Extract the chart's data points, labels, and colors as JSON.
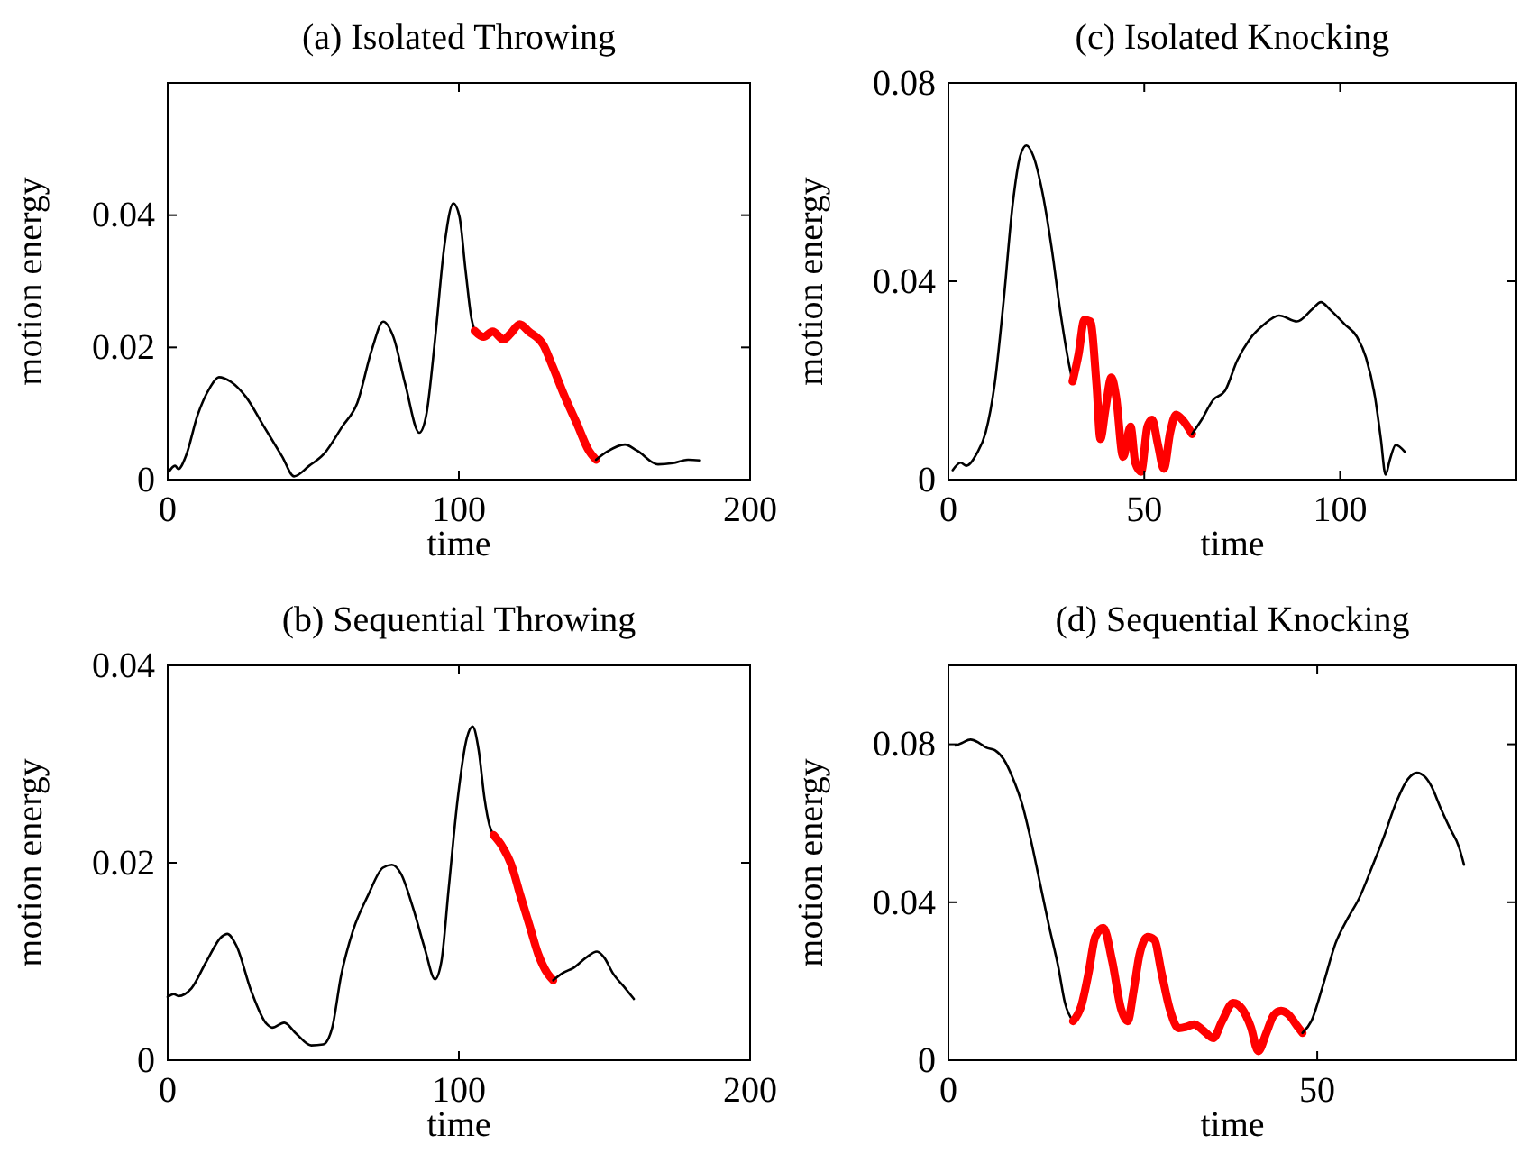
{
  "chart_data": [
    {
      "type": "line",
      "title": "(a) Isolated Throwing",
      "xlabel": "time",
      "ylabel": "motion energy",
      "xlim": [
        0,
        200
      ],
      "xticks": [
        0,
        100,
        200
      ],
      "ylim": [
        0,
        0.06
      ],
      "yticks": [
        0,
        0.02,
        0.04
      ],
      "grid": false,
      "series": [
        {
          "color": "#000000",
          "x": [
            0.4,
            2.5,
            3.7,
            6.2,
            10.3,
            14.5,
            17.6,
            21.7,
            26.9,
            33.1,
            39.3,
            43.4,
            48.6,
            53.7,
            59.9,
            65.1,
            70.2,
            74.0,
            77.5,
            81.6,
            86.4,
            88.8,
            91.9,
            95.0,
            98.1,
            100.2,
            102.3,
            104.3,
            105.4
          ],
          "values": [
            0.0012,
            0.0021,
            0.0016,
            0.0035,
            0.0098,
            0.0139,
            0.0155,
            0.0148,
            0.0125,
            0.008,
            0.0035,
            0.0005,
            0.0021,
            0.0039,
            0.008,
            0.0116,
            0.0198,
            0.0239,
            0.0216,
            0.0144,
            0.0071,
            0.0098,
            0.0216,
            0.0353,
            0.0418,
            0.0398,
            0.0316,
            0.0244,
            0.0225
          ]
        },
        {
          "color": "#ff0000",
          "x": [
            105.4,
            108.5,
            111.6,
            115.3,
            117.8,
            120.9,
            124.0,
            129.1,
            132.2,
            136.4,
            140.5,
            144.6,
            147.1
          ],
          "values": [
            0.0225,
            0.0216,
            0.0224,
            0.0212,
            0.0221,
            0.0235,
            0.0224,
            0.0203,
            0.0171,
            0.0125,
            0.0085,
            0.0044,
            0.003
          ]
        },
        {
          "color": "#000000",
          "x": [
            147.1,
            150.8,
            157.0,
            161.1,
            168.4,
            173.5,
            178.7,
            182.8
          ],
          "values": [
            0.003,
            0.0042,
            0.0053,
            0.0044,
            0.0023,
            0.0025,
            0.003,
            0.0029
          ]
        }
      ]
    },
    {
      "type": "line",
      "title": "(c) Isolated Knocking",
      "xlabel": "time",
      "ylabel": "motion energy",
      "xlim": [
        0,
        145
      ],
      "xticks": [
        0,
        50,
        100
      ],
      "ylim": [
        0,
        0.08
      ],
      "yticks": [
        0,
        0.04,
        0.08
      ],
      "grid": false,
      "series": [
        {
          "color": "#000000",
          "x": [
            1.1,
            3.1,
            4.6,
            7.2,
            9.5,
            11.8,
            14.1,
            16.4,
            18.3,
            19.9,
            21.7,
            24.0,
            26.3,
            28.6,
            30.6,
            31.7
          ],
          "values": [
            0.0019,
            0.0034,
            0.0028,
            0.0052,
            0.0095,
            0.0192,
            0.0361,
            0.0555,
            0.0652,
            0.0674,
            0.0652,
            0.0579,
            0.047,
            0.0337,
            0.024,
            0.0198
          ]
        },
        {
          "color": "#ff0000",
          "x": [
            31.7,
            33.2,
            34.7,
            36.2,
            37.8,
            38.8,
            40.1,
            41.6,
            42.8,
            44.6,
            46.5,
            47.7,
            49.2,
            50.8,
            52.0,
            53.5,
            55.0,
            56.6,
            58.1,
            59.9,
            62.2
          ],
          "values": [
            0.0198,
            0.0252,
            0.0322,
            0.0319,
            0.0192,
            0.0082,
            0.0143,
            0.0206,
            0.0167,
            0.0046,
            0.0107,
            0.0034,
            0.0016,
            0.0107,
            0.0121,
            0.007,
            0.0022,
            0.0095,
            0.0131,
            0.0119,
            0.0092
          ]
        },
        {
          "color": "#000000",
          "x": [
            62.2,
            64.5,
            67.6,
            70.6,
            73.7,
            76.8,
            80.6,
            84.4,
            89.0,
            92.8,
            95.1,
            97.4,
            101.2,
            104.3,
            106.6,
            108.9,
            110.4,
            111.6,
            112.7,
            114.2,
            116.5
          ],
          "values": [
            0.0092,
            0.0119,
            0.0161,
            0.0179,
            0.024,
            0.0282,
            0.0313,
            0.0331,
            0.0319,
            0.0343,
            0.0358,
            0.0343,
            0.0313,
            0.0288,
            0.0246,
            0.0167,
            0.0082,
            0.001,
            0.004,
            0.007,
            0.0056
          ]
        }
      ]
    },
    {
      "type": "line",
      "title": "(b) Sequential Throwing",
      "xlabel": "time",
      "ylabel": "motion energy",
      "xlim": [
        0,
        200
      ],
      "xticks": [
        0,
        100,
        200
      ],
      "ylim": [
        0,
        0.04
      ],
      "yticks": [
        0,
        0.02,
        0.04
      ],
      "grid": false,
      "series": [
        {
          "color": "#000000",
          "x": [
            0,
            2.1,
            3.7,
            8.2,
            13.3,
            18.5,
            20.5,
            23.6,
            28.7,
            33.9,
            35.9,
            40.0,
            44.1,
            49.3,
            53.4,
            56.5,
            59.5,
            63.6,
            68.8,
            73.9,
            77.0,
            80.1,
            84.2,
            88.3,
            91.8,
            94.0,
            96.5,
            99.6,
            102.7,
            104.7,
            106.8,
            108.8,
            110.5,
            111.9
          ],
          "values": [
            0.0064,
            0.0067,
            0.0065,
            0.0073,
            0.01,
            0.0125,
            0.0128,
            0.0116,
            0.007,
            0.0037,
            0.0033,
            0.0038,
            0.0027,
            0.0015,
            0.0016,
            0.0033,
            0.0085,
            0.0131,
            0.0167,
            0.0195,
            0.0198,
            0.0189,
            0.0155,
            0.0113,
            0.0082,
            0.01,
            0.0174,
            0.0265,
            0.0326,
            0.0338,
            0.0314,
            0.0265,
            0.0238,
            0.0228
          ]
        },
        {
          "color": "#ff0000",
          "x": [
            111.9,
            115.0,
            118.0,
            121.1,
            124.2,
            127.3,
            130.4,
            132.4
          ],
          "values": [
            0.0228,
            0.0216,
            0.0198,
            0.0167,
            0.0137,
            0.0107,
            0.0088,
            0.0081
          ]
        },
        {
          "color": "#000000",
          "x": [
            132.4,
            135.5,
            139.6,
            143.7,
            147.4,
            149.9,
            152.9,
            157.1,
            160.1
          ],
          "values": [
            0.0081,
            0.0088,
            0.0094,
            0.0104,
            0.011,
            0.0104,
            0.0088,
            0.0073,
            0.0062
          ]
        }
      ]
    },
    {
      "type": "line",
      "title": "(d) Sequential Knocking",
      "xlabel": "time",
      "ylabel": "motion energy",
      "xlim": [
        0,
        77
      ],
      "xticks": [
        0,
        50
      ],
      "ylim": [
        0,
        0.1
      ],
      "yticks": [
        0,
        0.04,
        0.08
      ],
      "grid": false,
      "series": [
        {
          "color": "#000000",
          "x": [
            1.0,
            1.8,
            3.0,
            4.2,
            5.1,
            6.3,
            7.5,
            8.7,
            10.0,
            11.2,
            12.4,
            13.6,
            14.9,
            15.8,
            16.9
          ],
          "values": [
            0.0797,
            0.0803,
            0.0812,
            0.0803,
            0.0792,
            0.0785,
            0.0762,
            0.0716,
            0.0648,
            0.0556,
            0.045,
            0.0343,
            0.0236,
            0.0145,
            0.0099
          ]
        },
        {
          "color": "#ff0000",
          "x": [
            16.9,
            18.0,
            19.0,
            19.9,
            21.0,
            22.2,
            23.4,
            24.3,
            25.1,
            25.9,
            27.0,
            27.9,
            28.9,
            30.0,
            31.2,
            32.2,
            33.3,
            34.5,
            35.9,
            37.1,
            38.6,
            39.8,
            41.0,
            42.0,
            43.1,
            44.1,
            45.1,
            46.2,
            47.1,
            48.0
          ],
          "values": [
            0.0099,
            0.0137,
            0.0221,
            0.0312,
            0.0335,
            0.0251,
            0.013,
            0.0099,
            0.0175,
            0.0267,
            0.0312,
            0.0305,
            0.0221,
            0.013,
            0.0081,
            0.0084,
            0.0091,
            0.0076,
            0.0056,
            0.0099,
            0.0145,
            0.013,
            0.0084,
            0.0023,
            0.0069,
            0.0114,
            0.0125,
            0.0114,
            0.0091,
            0.0069
          ]
        },
        {
          "color": "#000000",
          "x": [
            48.0,
            49.2,
            50.8,
            52.5,
            54.1,
            55.7,
            57.4,
            59.0,
            60.6,
            62.3,
            63.5,
            64.7,
            65.5,
            66.7,
            68.0,
            69.2,
            69.9
          ],
          "values": [
            0.0069,
            0.0099,
            0.0191,
            0.0297,
            0.0358,
            0.0411,
            0.0488,
            0.0564,
            0.0648,
            0.0712,
            0.0728,
            0.0716,
            0.0693,
            0.064,
            0.0587,
            0.0541,
            0.0495
          ]
        }
      ]
    }
  ]
}
